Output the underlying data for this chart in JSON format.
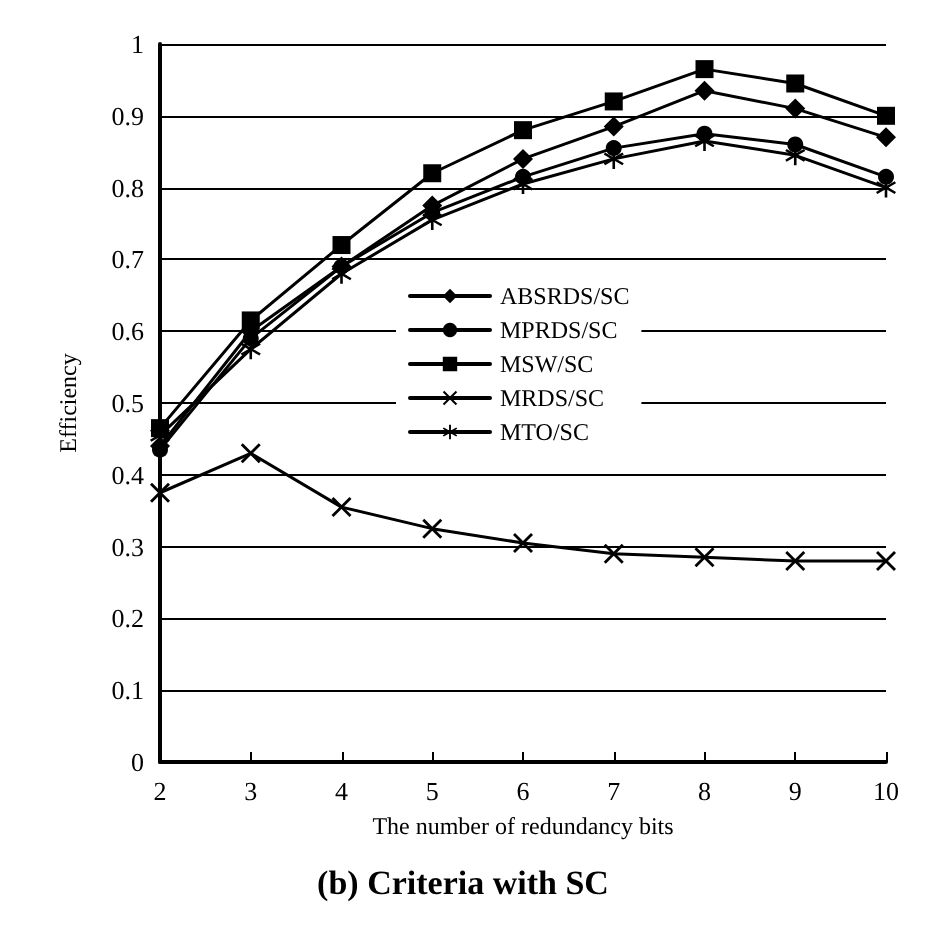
{
  "chart_data": {
    "type": "line",
    "title": "(b) Criteria with SC",
    "xlabel": "The number of redundancy bits",
    "ylabel": "Efficiency",
    "x": [
      2,
      3,
      4,
      5,
      6,
      7,
      8,
      9,
      10
    ],
    "series": [
      {
        "name": "ABSRDS/SC",
        "color": "#000000",
        "marker": "diamond",
        "values": [
          0.44,
          0.6,
          0.69,
          0.775,
          0.84,
          0.885,
          0.935,
          0.91,
          0.87
        ]
      },
      {
        "name": "MPRDS/SC",
        "color": "#000000",
        "marker": "circle",
        "values": [
          0.435,
          0.59,
          0.69,
          0.765,
          0.815,
          0.855,
          0.875,
          0.86,
          0.815
        ]
      },
      {
        "name": "MSW/SC",
        "color": "#000000",
        "marker": "square",
        "values": [
          0.465,
          0.615,
          0.72,
          0.82,
          0.88,
          0.92,
          0.965,
          0.945,
          0.9
        ]
      },
      {
        "name": "MRDS/SC",
        "color": "#000000",
        "marker": "cross",
        "values": [
          0.375,
          0.43,
          0.355,
          0.325,
          0.305,
          0.29,
          0.285,
          0.28,
          0.28
        ]
      },
      {
        "name": "MTO/SC",
        "color": "#000000",
        "marker": "star",
        "values": [
          0.455,
          0.575,
          0.68,
          0.755,
          0.805,
          0.84,
          0.865,
          0.845,
          0.8
        ]
      }
    ],
    "xlim": [
      2,
      10
    ],
    "xticks": [
      2,
      3,
      4,
      5,
      6,
      7,
      8,
      9,
      10
    ],
    "ylim": [
      0,
      1
    ],
    "yticks": [
      0,
      0.1,
      0.2,
      0.3,
      0.4,
      0.5,
      0.6,
      0.7,
      0.8,
      0.9,
      1
    ],
    "grid": "y",
    "legend": "center",
    "line_style": "solid"
  }
}
